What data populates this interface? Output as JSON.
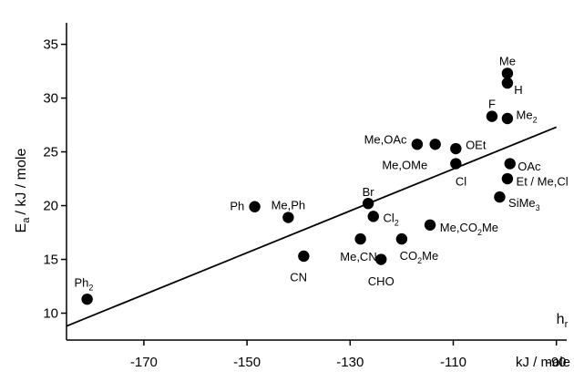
{
  "chart_data": {
    "type": "scatter",
    "title": "",
    "xlabel": "kJ / mole",
    "corner_label": {
      "main": "h",
      "sub": "r"
    },
    "ylabel": {
      "main": "E",
      "sub": "a",
      "unit": "/ kJ / mole"
    },
    "xlim": [
      -185,
      -88
    ],
    "ylim": [
      7.5,
      37
    ],
    "xticks": [
      -170,
      -150,
      -130,
      -110,
      -90
    ],
    "xtick_labels": [
      "-170",
      "-150",
      "-130",
      "-110",
      "-90"
    ],
    "yticks": [
      10,
      15,
      20,
      25,
      30,
      35
    ],
    "ytick_labels": [
      "10",
      "15",
      "20",
      "25",
      "30",
      "35"
    ],
    "grid": false,
    "trend_line": {
      "x": [
        -185,
        -90
      ],
      "y": [
        8.8,
        27.3
      ]
    },
    "points": [
      {
        "x": -181,
        "y": 11.3,
        "label": "Ph",
        "sub": "2",
        "tail": "",
        "lx": -183.5,
        "ly": 12.9,
        "anchor": "start"
      },
      {
        "x": -148.5,
        "y": 19.9,
        "label": "Ph",
        "sub": "",
        "tail": "",
        "lx": -150.5,
        "ly": 20.0,
        "anchor": "end"
      },
      {
        "x": -142,
        "y": 18.9,
        "label": "Me,Ph",
        "sub": "",
        "tail": "",
        "lx": -142,
        "ly": 20.1,
        "anchor": "middle"
      },
      {
        "x": -139,
        "y": 15.3,
        "label": "CN",
        "sub": "",
        "tail": "",
        "lx": -140,
        "ly": 13.4,
        "anchor": "middle"
      },
      {
        "x": -128,
        "y": 16.9,
        "label": "Me,CN",
        "sub": "",
        "tail": "",
        "lx": -124.8,
        "ly": 15.3,
        "anchor": "end"
      },
      {
        "x": -126.5,
        "y": 20.2,
        "label": "Br",
        "sub": "",
        "tail": "",
        "lx": -126.5,
        "ly": 21.3,
        "anchor": "middle"
      },
      {
        "x": -125.5,
        "y": 19.0,
        "label": "Cl",
        "sub": "2",
        "tail": "",
        "lx": -123.6,
        "ly": 18.9,
        "anchor": "start"
      },
      {
        "x": -124,
        "y": 15.0,
        "label": "CHO",
        "sub": "",
        "tail": "",
        "lx": -124,
        "ly": 13.0,
        "anchor": "middle"
      },
      {
        "x": -120,
        "y": 16.9,
        "label": "CO",
        "sub": "2",
        "tail": "Me",
        "lx": -120.4,
        "ly": 15.4,
        "anchor": "start"
      },
      {
        "x": -114.5,
        "y": 18.2,
        "label": "Me,CO",
        "sub": "2",
        "tail": "Me",
        "lx": -112.6,
        "ly": 18.0,
        "anchor": "start"
      },
      {
        "x": -117,
        "y": 25.7,
        "label": "Me,OAc",
        "sub": "",
        "tail": "",
        "lx": -119,
        "ly": 26.2,
        "anchor": "end"
      },
      {
        "x": -113.5,
        "y": 25.7,
        "label": "Me,OMe",
        "sub": "",
        "tail": "",
        "lx": -115,
        "ly": 23.8,
        "anchor": "end"
      },
      {
        "x": -109.5,
        "y": 25.3,
        "label": "OEt",
        "sub": "",
        "tail": "",
        "lx": -107.6,
        "ly": 25.7,
        "anchor": "start"
      },
      {
        "x": -109.5,
        "y": 23.9,
        "label": "Cl",
        "sub": "",
        "tail": "",
        "lx": -108.5,
        "ly": 22.3,
        "anchor": "middle"
      },
      {
        "x": -102.5,
        "y": 28.3,
        "label": "F",
        "sub": "",
        "tail": "",
        "lx": -102.5,
        "ly": 29.5,
        "anchor": "middle"
      },
      {
        "x": -99.5,
        "y": 28.1,
        "label": "Me",
        "sub": "2",
        "tail": "",
        "lx": -97.8,
        "ly": 28.5,
        "anchor": "start"
      },
      {
        "x": -99.5,
        "y": 32.3,
        "label": "Me",
        "sub": "",
        "tail": "",
        "lx": -99.5,
        "ly": 33.5,
        "anchor": "middle"
      },
      {
        "x": -99.5,
        "y": 31.4,
        "label": "H",
        "sub": "",
        "tail": "",
        "lx": -98.2,
        "ly": 30.8,
        "anchor": "start"
      },
      {
        "x": -99,
        "y": 23.9,
        "label": "OAc",
        "sub": "",
        "tail": "",
        "lx": -97.5,
        "ly": 23.7,
        "anchor": "start"
      },
      {
        "x": -99.5,
        "y": 22.5,
        "label": "Et / Me,Cl",
        "sub": "",
        "tail": "",
        "lx": -97.8,
        "ly": 22.3,
        "anchor": "start"
      },
      {
        "x": -101,
        "y": 20.8,
        "label": "SiMe",
        "sub": "3",
        "tail": "",
        "lx": -99.3,
        "ly": 20.3,
        "anchor": "start"
      }
    ]
  }
}
